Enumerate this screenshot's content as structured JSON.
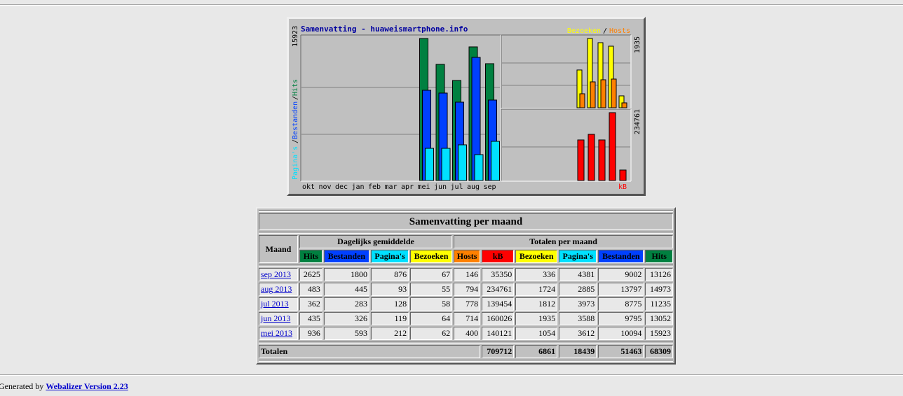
{
  "graph": {
    "title": "Samenvatting - huaweismartphone.info",
    "legend_visits": "Bezoeken",
    "legend_slash": "/",
    "legend_sites": "Hosts",
    "left_axis_max": "15923",
    "left_axis_label_pages": "Pagina's",
    "left_axis_label_files": "Bestanden",
    "left_axis_label_hits": "Hits",
    "left_axis_slash": "/",
    "right_top_max": "1935",
    "right_bottom_max": "234761",
    "kb_label": "kB",
    "months": [
      "okt",
      "nov",
      "dec",
      "jan",
      "feb",
      "mar",
      "apr",
      "mei",
      "jun",
      "jul",
      "aug",
      "sep"
    ],
    "colors": {
      "hits": "#008040",
      "files": "#0040ff",
      "pages": "#00e0ff",
      "visits": "#ffff00",
      "sites": "#ff8000",
      "kb": "#ff0000",
      "title": "#0000a0"
    }
  },
  "chart_data": {
    "type": "bar",
    "categories": [
      "okt",
      "nov",
      "dec",
      "jan",
      "feb",
      "mar",
      "apr",
      "mei",
      "jun",
      "jul",
      "aug",
      "sep"
    ],
    "series": [
      {
        "name": "Hits",
        "values": [
          0,
          0,
          0,
          0,
          0,
          0,
          0,
          15923,
          13052,
          11235,
          14973,
          13126
        ]
      },
      {
        "name": "Bestanden",
        "values": [
          0,
          0,
          0,
          0,
          0,
          0,
          0,
          10094,
          9795,
          8775,
          13797,
          9002
        ]
      },
      {
        "name": "Pagina's",
        "values": [
          0,
          0,
          0,
          0,
          0,
          0,
          0,
          3612,
          3588,
          3973,
          2885,
          4381
        ]
      },
      {
        "name": "Bezoeken",
        "values": [
          0,
          0,
          0,
          0,
          0,
          0,
          0,
          1054,
          1935,
          1812,
          1724,
          336
        ]
      },
      {
        "name": "Hosts",
        "values": [
          0,
          0,
          0,
          0,
          0,
          0,
          0,
          400,
          714,
          778,
          794,
          146
        ]
      },
      {
        "name": "kB",
        "values": [
          0,
          0,
          0,
          0,
          0,
          0,
          0,
          140121,
          160026,
          139454,
          234761,
          35350
        ]
      }
    ]
  },
  "table": {
    "caption": "Samenvatting per maand",
    "maand_header": "Maand",
    "group_daily": "Dagelijks gemiddelde",
    "group_monthly": "Totalen per maand",
    "daily_headers": [
      "Hits",
      "Bestanden",
      "Pagina's",
      "Bezoeken"
    ],
    "monthly_headers": [
      "Hosts",
      "kB",
      "Bezoeken",
      "Pagina's",
      "Bestanden",
      "Hits"
    ],
    "rows": [
      {
        "month": "sep 2013",
        "cells": [
          "2625",
          "1800",
          "876",
          "67",
          "146",
          "35350",
          "336",
          "4381",
          "9002",
          "13126"
        ]
      },
      {
        "month": "aug 2013",
        "cells": [
          "483",
          "445",
          "93",
          "55",
          "794",
          "234761",
          "1724",
          "2885",
          "13797",
          "14973"
        ]
      },
      {
        "month": "jul 2013",
        "cells": [
          "362",
          "283",
          "128",
          "58",
          "778",
          "139454",
          "1812",
          "3973",
          "8775",
          "11235"
        ]
      },
      {
        "month": "jun 2013",
        "cells": [
          "435",
          "326",
          "119",
          "64",
          "714",
          "160026",
          "1935",
          "3588",
          "9795",
          "13052"
        ]
      },
      {
        "month": "mei 2013",
        "cells": [
          "936",
          "593",
          "212",
          "62",
          "400",
          "140121",
          "1054",
          "3612",
          "10094",
          "15923"
        ]
      }
    ],
    "totals_label": "Totalen",
    "totals": [
      "709712",
      "6861",
      "18439",
      "51463",
      "68309"
    ]
  },
  "footer": {
    "prefix": "Generated by ",
    "link": "Webalizer Version 2.23"
  }
}
